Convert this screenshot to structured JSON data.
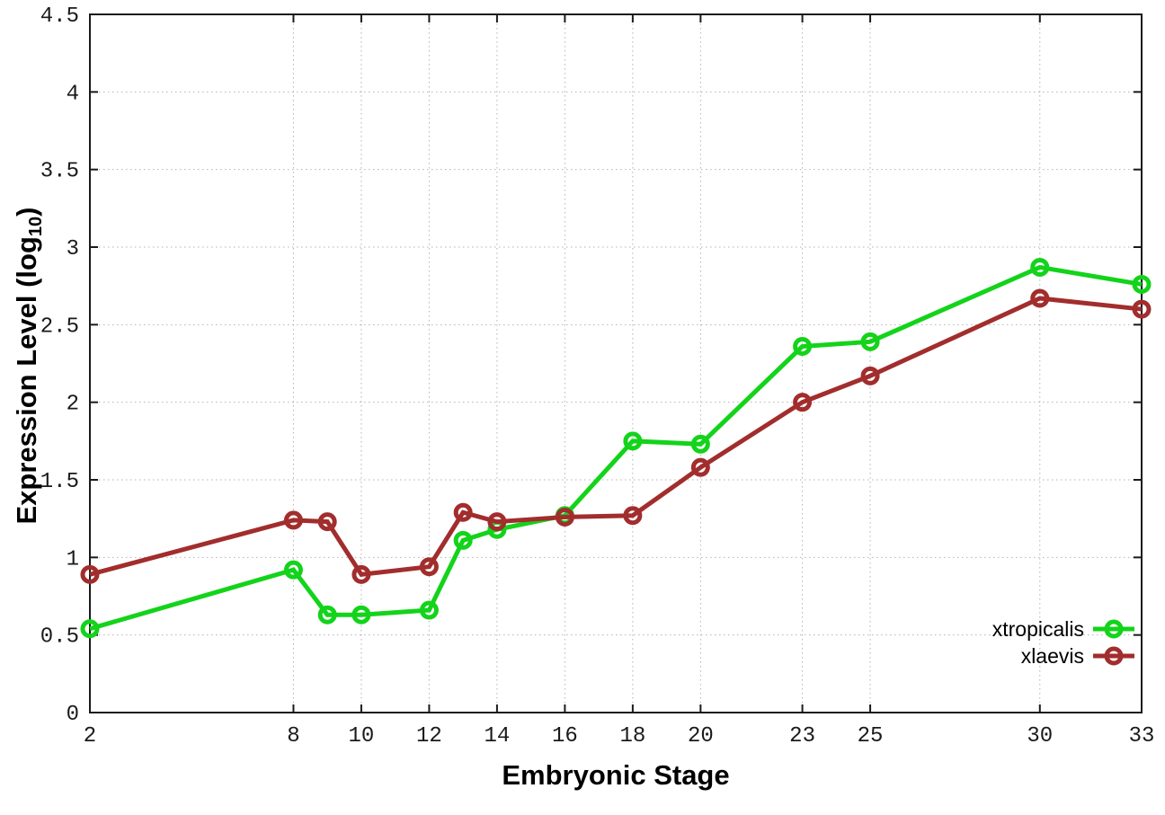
{
  "figure": {
    "background": "#ffffff",
    "frame_color": "#1a1a1a",
    "grid_color": "#b3b3b3",
    "tick_label_color": "#1a1a1a"
  },
  "chart_data": {
    "type": "line",
    "title": "",
    "xlabel": "Embryonic Stage",
    "ylabel": "Expression Level (log10)",
    "ylabel_parts": {
      "prefix": "Expression Level (log",
      "sub": "10",
      "suffix": ")"
    },
    "x": [
      2,
      8,
      9,
      10,
      12,
      13,
      14,
      16,
      18,
      20,
      23,
      25,
      30,
      33
    ],
    "xlim": [
      2,
      33
    ],
    "x_ticks": [
      2,
      8,
      10,
      12,
      14,
      16,
      18,
      20,
      23,
      25,
      30,
      33
    ],
    "x_tick_labels": [
      "2",
      "8",
      "10",
      "12",
      "14",
      "16",
      "18",
      "20",
      "23",
      "25",
      "30",
      "33"
    ],
    "ylim": [
      0,
      4.5
    ],
    "y_ticks": [
      0,
      0.5,
      1,
      1.5,
      2,
      2.5,
      3,
      3.5,
      4,
      4.5
    ],
    "y_tick_labels": [
      "0",
      "0.5",
      "1",
      "1.5",
      "2",
      "2.5",
      "3",
      "3.5",
      "4",
      "4.5"
    ],
    "grid": true,
    "legend_position": "bottom-right",
    "marker": "open-circle",
    "series": [
      {
        "name": "xtropicalis",
        "color": "#13d31a",
        "values": [
          0.54,
          0.92,
          0.63,
          0.63,
          0.66,
          1.11,
          1.18,
          1.27,
          1.75,
          1.73,
          2.36,
          2.39,
          2.87,
          2.76
        ]
      },
      {
        "name": "xlaevis",
        "color": "#a22d2d",
        "values": [
          0.89,
          1.24,
          1.23,
          0.89,
          0.94,
          1.29,
          1.23,
          1.26,
          1.27,
          1.58,
          2.0,
          2.17,
          2.67,
          2.6
        ]
      }
    ]
  }
}
